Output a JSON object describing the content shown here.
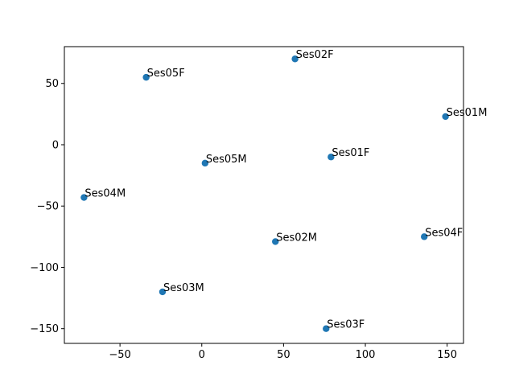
{
  "chart_data": {
    "type": "scatter",
    "title": "",
    "xlabel": "",
    "ylabel": "",
    "xlim": [
      -84,
      160
    ],
    "ylim": [
      -162,
      80
    ],
    "xticks": [
      -50,
      0,
      50,
      100,
      150
    ],
    "yticks": [
      -150,
      -100,
      -50,
      0,
      50
    ],
    "grid": false,
    "marker_color": "#1f77b4",
    "points": [
      {
        "label": "Ses02F",
        "x": 57,
        "y": 70
      },
      {
        "label": "Ses05F",
        "x": -34,
        "y": 55
      },
      {
        "label": "Ses01M",
        "x": 149,
        "y": 23
      },
      {
        "label": "Ses01F",
        "x": 79,
        "y": -10
      },
      {
        "label": "Ses05M",
        "x": 2,
        "y": -15
      },
      {
        "label": "Ses04M",
        "x": -72,
        "y": -43
      },
      {
        "label": "Ses04F",
        "x": 136,
        "y": -75
      },
      {
        "label": "Ses02M",
        "x": 45,
        "y": -79
      },
      {
        "label": "Ses03M",
        "x": -24,
        "y": -120
      },
      {
        "label": "Ses03F",
        "x": 76,
        "y": -150
      }
    ]
  }
}
